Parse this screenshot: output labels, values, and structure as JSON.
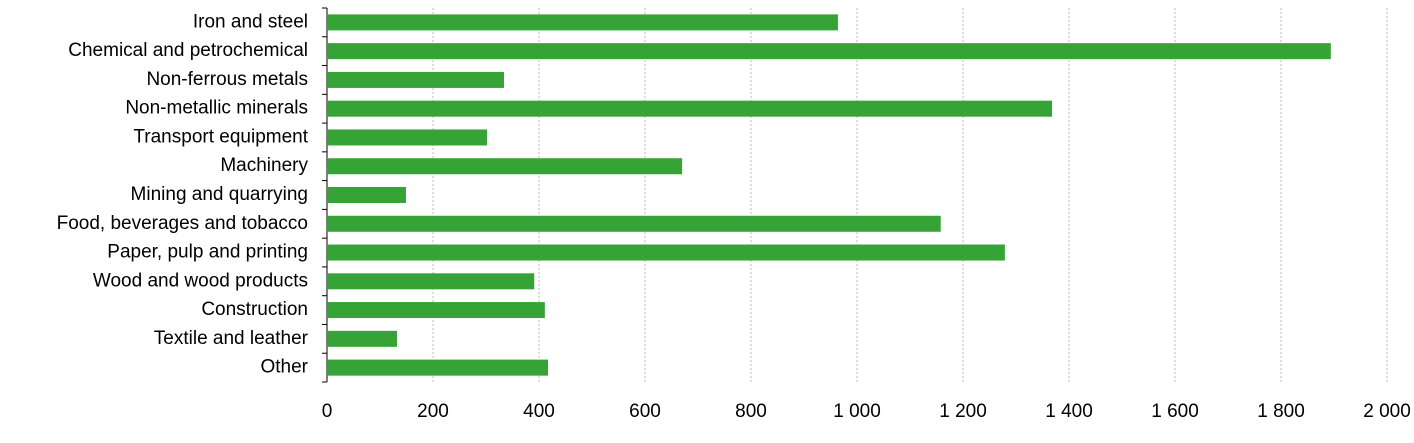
{
  "chart_data": {
    "type": "hbar",
    "categories": [
      "Iron and steel",
      "Chemical and petrochemical",
      "Non-ferrous metals",
      "Non-metallic minerals",
      "Transport equipment",
      "Machinery",
      "Mining and quarrying",
      "Food, beverages and tobacco",
      "Paper, pulp and printing",
      "Wood and wood products",
      "Construction",
      "Textile and leather",
      "Other"
    ],
    "values": [
      964,
      1894,
      334,
      1368,
      302,
      670,
      149,
      1158,
      1279,
      391,
      411,
      132,
      417
    ],
    "color": "#36a336",
    "xlim": [
      0,
      2000
    ],
    "xticks": [
      0,
      200,
      400,
      600,
      800,
      {
        "value": 1000,
        "label": "1 000"
      },
      {
        "value": 1200,
        "label": "1 200"
      },
      {
        "value": 1400,
        "label": "1 400"
      },
      {
        "value": 1600,
        "label": "1 600"
      },
      {
        "value": 1800,
        "label": "1 800"
      },
      {
        "value": 2000,
        "label": "2 000"
      }
    ],
    "grid": true
  }
}
